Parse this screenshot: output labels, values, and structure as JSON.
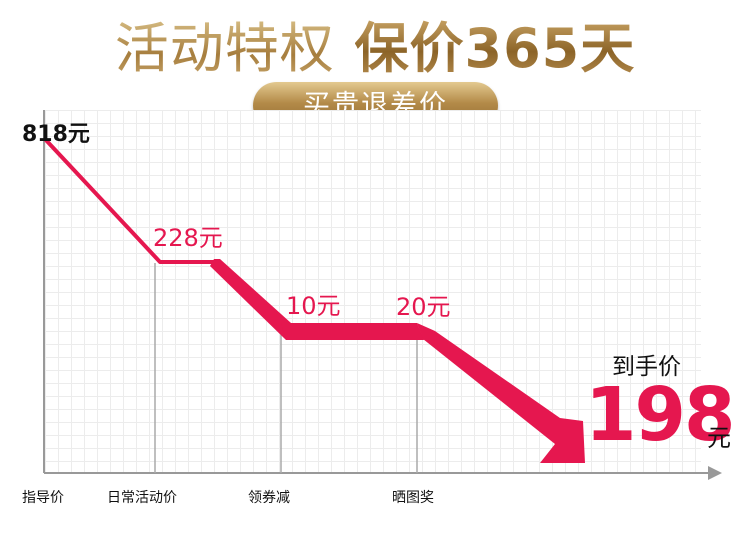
{
  "header": {
    "title_part1": "活动特权",
    "title_part2": "保价365天",
    "subtitle": "买贵退差价"
  },
  "colors": {
    "accent": "#e5174f",
    "gold": "#b38a48",
    "axis": "#999999"
  },
  "chart_data": {
    "type": "line",
    "title": "",
    "xlabel": "",
    "ylabel": "",
    "grid": true,
    "categories": [
      "指导价",
      "日常活动价",
      "领券减",
      "晒图奖"
    ],
    "start_label": "818元",
    "step_labels": [
      "228元",
      "10元",
      "20元"
    ],
    "final_caption": "到手价",
    "final_value": "198",
    "final_unit": "元"
  }
}
